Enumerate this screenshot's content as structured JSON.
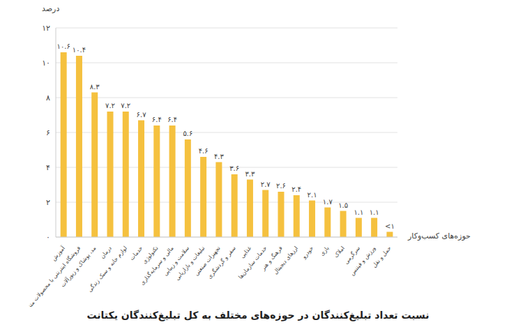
{
  "chart_data": {
    "type": "bar",
    "title": "نسبت تعداد تبلیغ‌کنندگان در حوزه‌های مختلف به کل تبلیغ‌کنندگان یکتانت",
    "x_label": "حوزه‌های کسب‌وکار",
    "y_label": "درصد",
    "categories": [
      "آموزش",
      "فروشگاه اینترنتی با محصولات متنوع",
      "مد، پوشاک و زیورآلات",
      "درمان",
      "لوازم خانه و سبک زندگی",
      "خدمات",
      "تکنولوژی",
      "مالی و سرمایه‌گذاری",
      "سلامت و زیبایی",
      "تبلیغات و بازاریابی",
      "تجهیزات صنعتی",
      "سفر و گردشگری",
      "غذایی",
      "خدمات سازمان‌ها",
      "فرهنگ و هنر",
      "ارزهای دیجیتال",
      "خودرو",
      "بازی",
      "املاک",
      "سرگرمی",
      "ورزش و فیتنس",
      "حمل و نقل"
    ],
    "values": [
      10.6,
      10.4,
      8.3,
      7.2,
      7.2,
      6.7,
      6.4,
      6.4,
      5.6,
      4.6,
      4.3,
      3.6,
      3.3,
      2.7,
      2.6,
      2.4,
      2.1,
      1.7,
      1.5,
      1.1,
      1.1,
      0.3
    ],
    "value_labels": [
      "۱۰.۶",
      "۱۰.۴",
      "۸.۳",
      "۷.۲",
      "۷.۲",
      "۶.۷",
      "۶.۴",
      "۶.۴",
      "۵.۶",
      "۴.۶",
      "۴.۳",
      "۳.۶",
      "۳.۳",
      "۲.۷",
      "۲.۶",
      "۲.۴",
      "۲.۱",
      "۱.۷",
      "۱.۵",
      "۱.۱",
      "۱.۱",
      "<۱"
    ],
    "color": "#f5c13f",
    "ylim": [
      0,
      12
    ],
    "yticks": [
      {
        "value": 0,
        "label": "۰"
      },
      {
        "value": 2,
        "label": "۲"
      },
      {
        "value": 4,
        "label": "۴"
      },
      {
        "value": 6,
        "label": "۶"
      },
      {
        "value": 8,
        "label": "۸"
      },
      {
        "value": 10,
        "label": "۱۰"
      },
      {
        "value": 12,
        "label": "۱۲"
      }
    ],
    "grid": true,
    "data_labels": true
  }
}
